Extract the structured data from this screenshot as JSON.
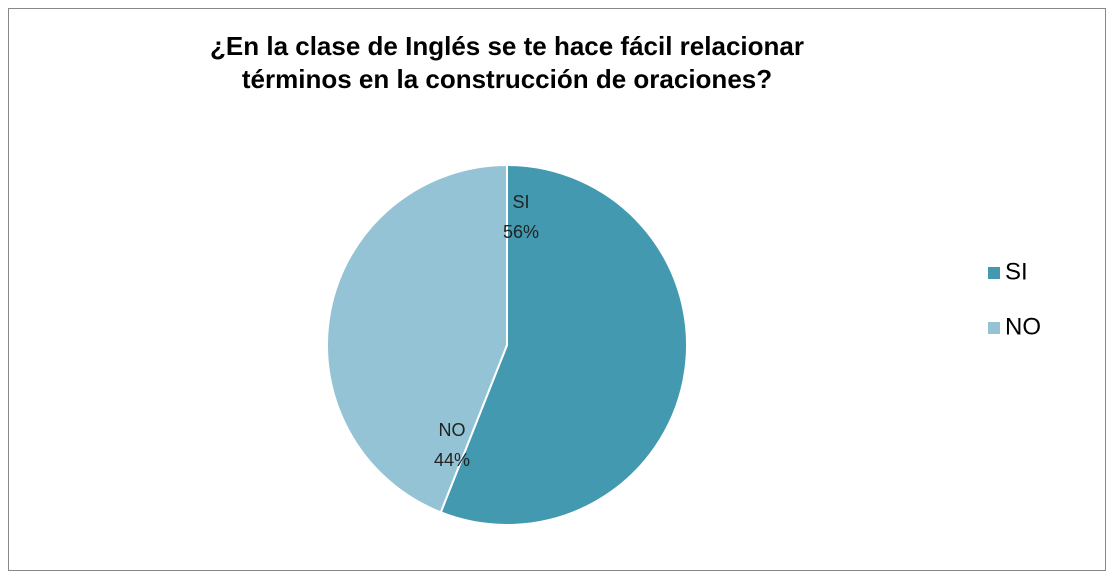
{
  "chart_data": {
    "type": "pie",
    "title": "¿En la clase de Inglés se te hace fácil relacionar términos en la construcción de oraciones?",
    "categories": [
      "SI",
      "NO"
    ],
    "values": [
      56,
      44
    ],
    "value_labels": [
      "56%",
      "44%"
    ],
    "colors": [
      "#4399b0",
      "#93c3d4"
    ],
    "legend": "right"
  }
}
